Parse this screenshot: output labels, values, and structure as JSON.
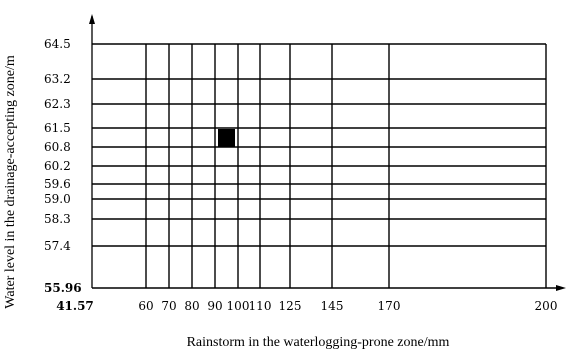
{
  "chart_data": {
    "type": "heatmap",
    "xlabel": "Rainstorm in the waterlogging-prone zone/mm",
    "ylabel": "Water level in the drainage-accepting zone/m",
    "x_ticks": [
      41.57,
      60,
      70,
      80,
      90,
      100,
      110,
      125,
      145,
      170,
      200
    ],
    "x_tick_labels": [
      "41.57",
      "60",
      "70",
      "80",
      "90",
      "100",
      "110",
      "125",
      "145",
      "170",
      "200"
    ],
    "y_ticks": [
      55.96,
      57.4,
      58.3,
      59.0,
      59.6,
      60.2,
      60.8,
      61.5,
      62.3,
      63.2,
      64.5
    ],
    "y_tick_labels": [
      "55.96",
      "57.4",
      "58.3",
      "59.0",
      "59.6",
      "60.2",
      "60.8",
      "61.5",
      "62.3",
      "63.2",
      "64.5"
    ],
    "xlim": [
      41.57,
      200
    ],
    "ylim": [
      55.96,
      64.5
    ],
    "grid": true,
    "highlighted_cell": {
      "x_range": [
        90,
        100
      ],
      "y_range": [
        60.8,
        61.5
      ],
      "color": "#000000"
    }
  }
}
